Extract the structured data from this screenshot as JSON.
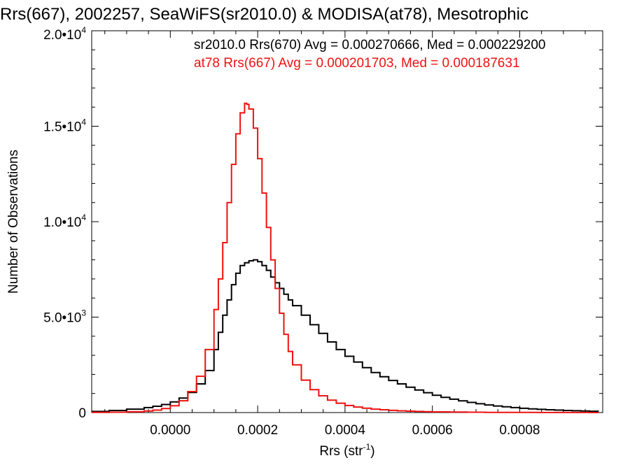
{
  "chart_data": {
    "type": "line",
    "title": "Rrs(667), 2002257, SeaWiFS(sr2010.0) & MODISA(at78), Mesotrophic",
    "xlabel": "Rrs (str",
    "xlabel_sup": "-1",
    "xlabel_end": ")",
    "ylabel": "Number of Observations",
    "xlim": [
      -0.00018,
      0.00099
    ],
    "ylim": [
      0,
      20000
    ],
    "x_ticks": [
      0.0,
      0.0002,
      0.0004,
      0.0006,
      0.0008
    ],
    "x_tick_labels": [
      "0.0000",
      "0.0002",
      "0.0004",
      "0.0006",
      "0.0008"
    ],
    "y_ticks": [
      0,
      5000,
      10000,
      15000,
      20000
    ],
    "y_tick_labels": [
      {
        "text": "0",
        "exp": ""
      },
      {
        "text": "5.0•10",
        "exp": "3"
      },
      {
        "text": "1.0•10",
        "exp": "4"
      },
      {
        "text": "1.5•10",
        "exp": "4"
      },
      {
        "text": "2.0•10",
        "exp": "4"
      }
    ],
    "grid": false,
    "legend": [
      {
        "text": "sr2010.0 Rrs(670) Avg = 0.000270666, Med = 0.000229200",
        "color": "#000000"
      },
      {
        "text": "at78 Rrs(667) Avg = 0.000201703, Med = 0.000187631",
        "color": "#ee1111"
      }
    ],
    "series": [
      {
        "name": "sr2010.0 Rrs(670)",
        "color": "#000000",
        "x": [
          -0.00018,
          -0.00014,
          -0.0001,
          -6e-05,
          -4e-05,
          -2e-05,
          0.0,
          2e-05,
          4e-05,
          6e-05,
          8e-05,
          0.0001,
          0.00011,
          0.00012,
          0.00013,
          0.00014,
          0.00015,
          0.00016,
          0.00017,
          0.00018,
          0.00019,
          0.0002,
          0.00021,
          0.00022,
          0.00023,
          0.00024,
          0.00025,
          0.00026,
          0.00027,
          0.00028,
          0.0003,
          0.00032,
          0.00034,
          0.00036,
          0.00038,
          0.0004,
          0.00042,
          0.00044,
          0.00046,
          0.00048,
          0.0005,
          0.00052,
          0.00054,
          0.00056,
          0.00058,
          0.0006,
          0.00062,
          0.00064,
          0.00066,
          0.00068,
          0.0007,
          0.00072,
          0.00074,
          0.00076,
          0.00078,
          0.0008,
          0.00082,
          0.00084,
          0.00086,
          0.00088,
          0.0009,
          0.00092,
          0.00094,
          0.00096,
          0.00098
        ],
        "values": [
          60,
          110,
          180,
          260,
          330,
          420,
          560,
          760,
          1050,
          1500,
          2200,
          3300,
          4200,
          5100,
          5900,
          6700,
          7300,
          7700,
          7850,
          7950,
          8000,
          7900,
          7700,
          7450,
          7100,
          6800,
          6500,
          6200,
          5900,
          5600,
          5100,
          4600,
          4150,
          3700,
          3300,
          2950,
          2650,
          2350,
          2100,
          1880,
          1680,
          1500,
          1330,
          1180,
          1040,
          910,
          800,
          700,
          610,
          530,
          460,
          400,
          345,
          300,
          260,
          225,
          195,
          170,
          148,
          128,
          110,
          95,
          82,
          70,
          60
        ]
      },
      {
        "name": "at78 Rrs(667)",
        "color": "#ee1111",
        "x": [
          -0.00018,
          -0.00014,
          -0.0001,
          -6e-05,
          -4e-05,
          -2e-05,
          0.0,
          2e-05,
          4e-05,
          6e-05,
          8e-05,
          0.0001,
          0.00011,
          0.00012,
          0.00013,
          0.00014,
          0.00015,
          0.00016,
          0.00017,
          0.000175,
          0.00018,
          0.00019,
          0.0002,
          0.00021,
          0.00022,
          0.00023,
          0.00024,
          0.00025,
          0.00026,
          0.00027,
          0.00028,
          0.0003,
          0.00032,
          0.00034,
          0.00036,
          0.00038,
          0.0004,
          0.00042,
          0.00044,
          0.00046,
          0.00048,
          0.0005,
          0.00052,
          0.00054,
          0.00056,
          0.00058,
          0.0006,
          0.00064,
          0.00068,
          0.00072,
          0.00076,
          0.0008,
          0.00084,
          0.00088,
          0.00092,
          0.00096,
          0.00098
        ],
        "values": [
          10,
          20,
          40,
          80,
          130,
          210,
          360,
          620,
          1100,
          1900,
          3300,
          5400,
          7000,
          8900,
          11000,
          13000,
          14600,
          15700,
          16200,
          16150,
          15900,
          14900,
          13300,
          11500,
          9700,
          8000,
          6500,
          5200,
          4100,
          3200,
          2500,
          1700,
          1200,
          880,
          650,
          490,
          370,
          290,
          230,
          180,
          145,
          115,
          92,
          74,
          60,
          48,
          38,
          26,
          18,
          12,
          8,
          6,
          4,
          3,
          2,
          1,
          1
        ]
      }
    ]
  }
}
